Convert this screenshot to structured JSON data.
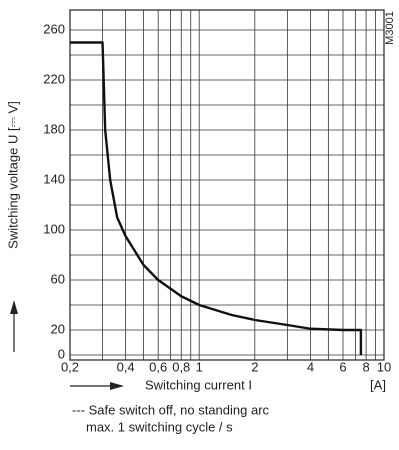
{
  "chart_data": {
    "type": "line",
    "y_label": "Switching voltage U [⎓ V]",
    "x_label": "Switching current I",
    "x_unit": "[A]",
    "code": "M3001",
    "notes": [
      "--- Safe switch off, no standing arc",
      "max. 1 switching cycle / s"
    ],
    "x_log": true,
    "xlim": [
      0.2,
      10
    ],
    "ylim": [
      -4,
      276
    ],
    "xticks": [
      {
        "value": 0.2,
        "label": "0,2"
      },
      {
        "value": 0.4,
        "label": "0,4"
      },
      {
        "value": 0.6,
        "label": "0,6"
      },
      {
        "value": 0.8,
        "label": "0,8"
      },
      1,
      2,
      4,
      6,
      8,
      10
    ],
    "xminor": [
      0.3,
      0.5,
      0.7,
      0.9,
      3,
      5,
      7,
      9
    ],
    "yticks": [
      0,
      20,
      60,
      100,
      140,
      180,
      220,
      260
    ],
    "yminor": [
      40,
      80,
      120,
      160,
      200,
      240
    ],
    "grid": true,
    "series": [
      {
        "name": "Safe switch off",
        "color": "#111111",
        "x": [
          0.2,
          0.3,
          0.31,
          0.33,
          0.36,
          0.4,
          0.5,
          0.6,
          0.8,
          1,
          1.5,
          2,
          3,
          4,
          6,
          7.5,
          7.5
        ],
        "values": [
          250,
          250,
          180,
          140,
          110,
          95,
          72,
          60,
          47,
          40,
          32,
          28,
          24,
          21,
          20,
          20,
          0
        ]
      }
    ]
  }
}
